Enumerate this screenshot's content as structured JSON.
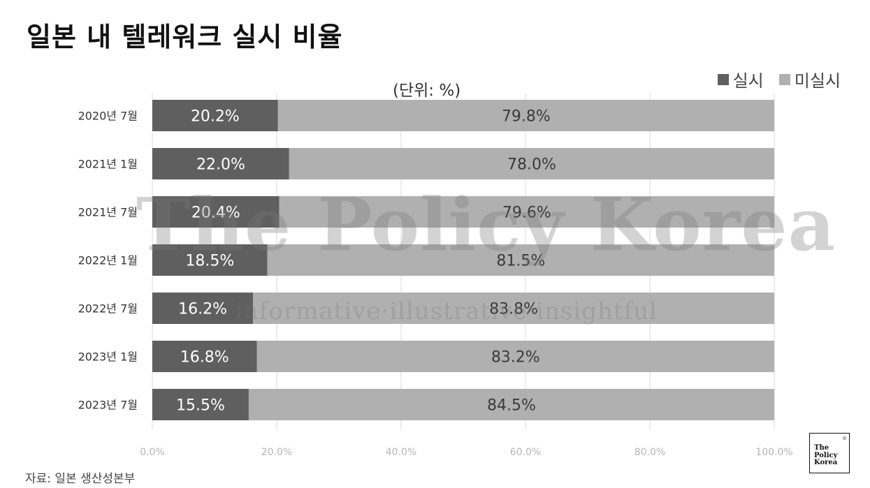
{
  "title": "일본 내 텔레워크 실시 비율",
  "unit_note": "(단위: %)",
  "source": "자료: 일본 생산성본부",
  "watermark": {
    "main": "The Policy Korea",
    "sub": "informative·illustrative·insightful"
  },
  "logo": {
    "text": "The\nPolicy\nKorea"
  },
  "colors": {
    "implemented": "#5f5f5f",
    "not_implemented": "#b0b0b0"
  },
  "legend": [
    {
      "name": "실시",
      "color": "#5f5f5f"
    },
    {
      "name": "미실시",
      "color": "#b0b0b0"
    }
  ],
  "chart_data": {
    "type": "bar",
    "orientation": "horizontal",
    "stacked": true,
    "title": "일본 내 텔레워크 실시 비율",
    "categories": [
      "2020년 7월",
      "2021년 1월",
      "2021년 7월",
      "2022년 1월",
      "2022년 7월",
      "2023년 1월",
      "2023년 7월"
    ],
    "series": [
      {
        "name": "실시",
        "values": [
          20.2,
          22.0,
          20.4,
          18.5,
          16.2,
          16.8,
          15.5
        ],
        "labels": [
          "20.2%",
          "22.0%",
          "20.4%",
          "18.5%",
          "16.2%",
          "16.8%",
          "15.5%"
        ]
      },
      {
        "name": "미실시",
        "values": [
          79.8,
          78.0,
          79.6,
          81.5,
          83.8,
          83.2,
          84.5
        ],
        "labels": [
          "79.8%",
          "78.0%",
          "79.6%",
          "81.5%",
          "83.8%",
          "83.2%",
          "84.5%"
        ]
      }
    ],
    "xlim": [
      0,
      100
    ],
    "xticks": [
      "0.0%",
      "20.0%",
      "40.0%",
      "60.0%",
      "80.0%",
      "100.0%"
    ],
    "grid": true,
    "legend_position": "top-right"
  }
}
